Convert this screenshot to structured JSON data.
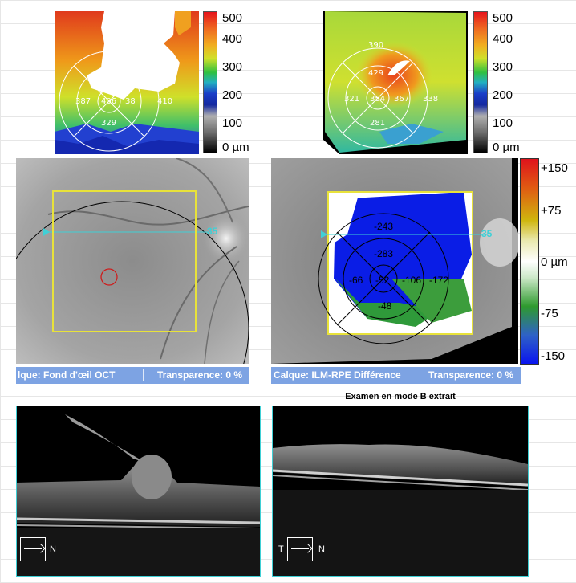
{
  "left_thickness_map": {
    "ring_values": [
      "387",
      "406",
      "38",
      "410",
      "329"
    ],
    "scale_labels": [
      "500",
      "400",
      "300",
      "200",
      "100",
      "0 µm"
    ]
  },
  "right_thickness_map": {
    "ring_values": [
      "390",
      "429",
      "321",
      "354",
      "367",
      "338",
      "281"
    ],
    "scale_labels": [
      "500",
      "400",
      "300",
      "200",
      "100",
      "0 µm"
    ]
  },
  "difference_map": {
    "values": [
      "-243",
      "-283",
      "-66",
      "-52",
      "-106",
      "-172",
      "-48"
    ],
    "scale_labels": [
      "+150",
      "+75",
      "0 µm",
      "-75",
      "-150"
    ]
  },
  "left_fundus": {
    "scan_line_label": "35"
  },
  "right_fundus": {
    "scan_line_label": "35"
  },
  "left_layer_bar": {
    "layer": "lque: Fond d'œil OCT",
    "transparency": "Transparence: 0 %"
  },
  "right_layer_bar": {
    "layer": "Calque: ILM-RPE Différence",
    "transparency": "Transparence: 0 %"
  },
  "bscan_title": "Examen en mode B extrait",
  "left_bscan": {
    "orientation_right": "N"
  },
  "right_bscan": {
    "orientation_left": "T",
    "orientation_right": "N"
  },
  "colors": {
    "accent_cyan": "#3fd0d6",
    "layer_bar": "#7da3e3",
    "roi_yellow": "#e8e23a"
  }
}
